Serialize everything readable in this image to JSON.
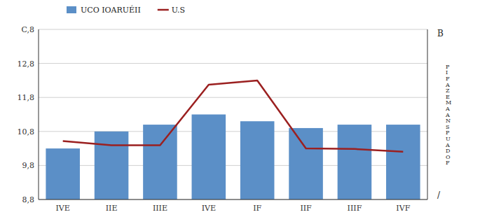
{
  "chart_data": {
    "type": "bar",
    "categories": [
      "IVE",
      "IIE",
      "IIIE",
      "IVE",
      "IF",
      "IIF",
      "IIIF",
      "IVF"
    ],
    "series": [
      {
        "name": "UCO IOARUÉII",
        "type": "bar",
        "color": "#5b8fc7",
        "values": [
          10.3,
          10.8,
          11.0,
          11.3,
          11.1,
          10.9,
          11.0,
          11.0
        ]
      },
      {
        "name": "U.S",
        "type": "line",
        "axis": "y2",
        "color": "#9b2020",
        "values": [
          7.5,
          7.1,
          7.1,
          12.8,
          13.2,
          6.8,
          6.75,
          6.5
        ]
      }
    ],
    "ylim": [
      8.8,
      13.8
    ],
    "yticks": [
      {
        "value": 8.8,
        "label": "8,8"
      },
      {
        "value": 9.8,
        "label": "9,8"
      },
      {
        "value": 10.8,
        "label": "10,8"
      },
      {
        "value": 11.8,
        "label": "11,8"
      },
      {
        "value": 12.8,
        "label": "12,8"
      },
      {
        "value": 13.8,
        "label": "C,8"
      }
    ],
    "y2lim": [
      2,
      18
    ],
    "y2ticks": [],
    "grid": true,
    "legend": "top",
    "annotations": [
      "B",
      "P\nI\nF\nA\nZ\nE\nM\nA\nA\nN\nS\nP\nU\nA\nD\nO\nF",
      "/"
    ]
  }
}
